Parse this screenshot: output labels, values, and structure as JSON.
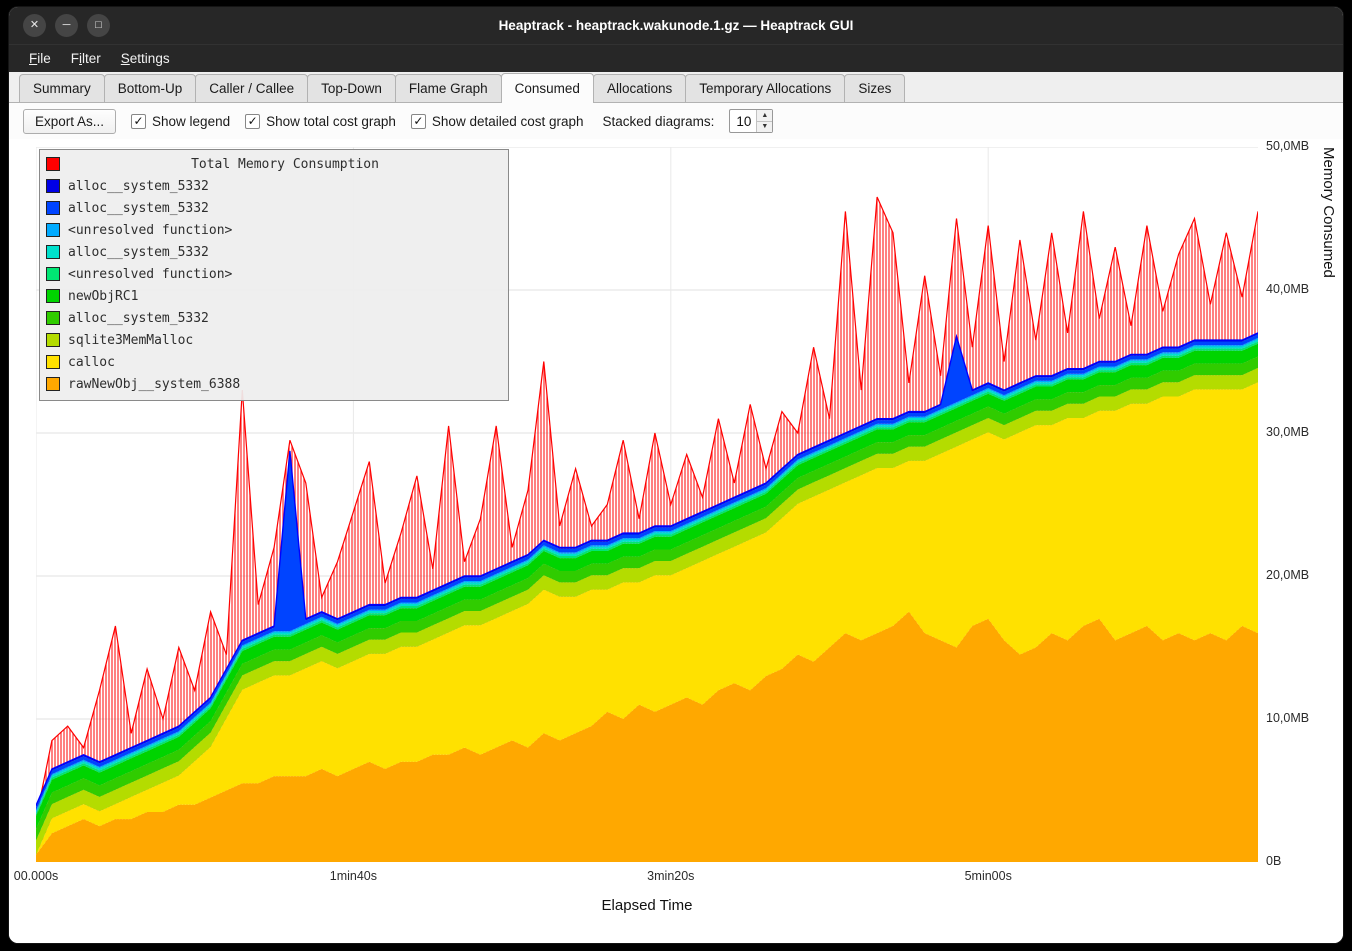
{
  "window": {
    "title": "Heaptrack - heaptrack.wakunode.1.gz — Heaptrack GUI",
    "controls": [
      {
        "name": "close",
        "glyph": "✕"
      },
      {
        "name": "minimize",
        "glyph": "─"
      },
      {
        "name": "maximize",
        "glyph": "□"
      }
    ]
  },
  "menubar": {
    "items": [
      {
        "label": "File",
        "accel": 0
      },
      {
        "label": "Filter",
        "accel": 1
      },
      {
        "label": "Settings",
        "accel": 0
      }
    ]
  },
  "tabs": {
    "active": "Consumed",
    "items": [
      "Summary",
      "Bottom-Up",
      "Caller / Callee",
      "Top-Down",
      "Flame Graph",
      "Consumed",
      "Allocations",
      "Temporary Allocations",
      "Sizes"
    ]
  },
  "toolbar": {
    "export_label": "Export As...",
    "check_glyph": "✓",
    "checkboxes": [
      {
        "label": "Show legend",
        "checked": true
      },
      {
        "label": "Show total cost graph",
        "checked": true
      },
      {
        "label": "Show detailed cost graph",
        "checked": true
      }
    ],
    "stacked_label": "Stacked diagrams:",
    "stacked_value": "10",
    "spin_up_glyph": "▲",
    "spin_down_glyph": "▼"
  },
  "chart_data": {
    "type": "area",
    "xlabel": "Elapsed Time",
    "ylabel": "Memory Consumed",
    "xlim": [
      0,
      385
    ],
    "ylim": [
      0,
      50
    ],
    "x_unit": "seconds",
    "y_unit": "MB",
    "grid": true,
    "x_ticks": [
      {
        "t": 0,
        "label": "00.000s"
      },
      {
        "t": 100,
        "label": "1min40s"
      },
      {
        "t": 200,
        "label": "3min20s"
      },
      {
        "t": 300,
        "label": "5min00s"
      }
    ],
    "y_ticks": [
      {
        "v": 0,
        "label": "0B"
      },
      {
        "v": 10,
        "label": "10,0MB"
      },
      {
        "v": 20,
        "label": "20,0MB"
      },
      {
        "v": 30,
        "label": "30,0MB"
      },
      {
        "v": 40,
        "label": "40,0MB"
      },
      {
        "v": 50,
        "label": "50,0MB"
      }
    ],
    "x_step": 5,
    "total": {
      "name": "Total Memory Consumption",
      "color": "#ff0000",
      "values": [
        3,
        8.5,
        9.5,
        8,
        12,
        16.5,
        9,
        13.5,
        10,
        15,
        12,
        17.5,
        14.5,
        33,
        18,
        22,
        29.5,
        26.5,
        18.5,
        21,
        24.5,
        28,
        19.5,
        23,
        27,
        20.5,
        30.5,
        21,
        24,
        30.5,
        22,
        26,
        35,
        23.5,
        27.5,
        23.5,
        25,
        29.5,
        24,
        30,
        25,
        28.5,
        25.5,
        31,
        26.5,
        32,
        27.5,
        31.5,
        30,
        36,
        31,
        45.5,
        33,
        46.5,
        44,
        33.5,
        41,
        34,
        45,
        36,
        44.5,
        35,
        43.5,
        36.5,
        44,
        37,
        45.5,
        38,
        43,
        37.5,
        44.5,
        38.5,
        42.5,
        45,
        39,
        44,
        39.5,
        45.5
      ]
    },
    "series_bottom_up": [
      {
        "name": "rawNewObj__system_6388",
        "color": "#ffa800",
        "values": [
          0.5,
          2,
          2.5,
          3,
          2.5,
          3,
          3,
          3.5,
          3.5,
          4,
          4,
          4.5,
          5,
          5.5,
          5.5,
          6,
          6,
          6,
          6.5,
          6,
          6.5,
          7,
          6.5,
          7,
          7,
          7.5,
          7.5,
          8,
          7.5,
          8,
          8.5,
          8,
          9,
          8.5,
          9,
          9.5,
          10.5,
          10,
          11,
          10.5,
          11,
          11.5,
          11,
          12,
          12.5,
          12,
          13,
          13.5,
          14.5,
          14,
          15,
          16,
          15.5,
          16,
          16.5,
          17.5,
          16,
          15.5,
          15,
          16.5,
          17,
          15.5,
          14.5,
          15,
          16,
          15.5,
          16.5,
          17,
          15.5,
          16,
          16.5,
          15.5,
          16,
          15.5,
          16,
          15.5,
          16.5,
          16
        ]
      },
      {
        "name": "calloc",
        "color": "#ffe100",
        "values": [
          0,
          1.05,
          1.05,
          1.05,
          1.05,
          1.05,
          1.55,
          1.55,
          2.05,
          2.05,
          3.05,
          3.55,
          5.05,
          6.55,
          7.05,
          7.05,
          7.05,
          7.55,
          7.55,
          7.55,
          7.55,
          7.55,
          8.05,
          8.05,
          8.05,
          8.05,
          8.55,
          8.55,
          9.05,
          9.05,
          9.05,
          10.05,
          10.05,
          10.05,
          9.55,
          9.55,
          8.55,
          9.55,
          8.55,
          9.55,
          9.05,
          9.05,
          10.05,
          9.55,
          9.55,
          10.55,
          10.05,
          10.55,
          10.55,
          11.55,
          11.05,
          10.55,
          11.55,
          11.55,
          11.05,
          10.55,
          12.05,
          13.05,
          14.05,
          13.05,
          13.05,
          14.05,
          15.55,
          15.55,
          14.55,
          15.55,
          14.55,
          14.55,
          16.05,
          16.05,
          15.55,
          17.05,
          16.55,
          17.55,
          17.05,
          17.55,
          16.55,
          17.55
        ]
      },
      {
        "name": "sqlite3MemMalloc",
        "color": "#b4dc00",
        "constant": 1.0
      },
      {
        "name": "alloc__system_5332",
        "color": "#30cc00",
        "constant": 0.8
      },
      {
        "name": "newObjRC1",
        "color": "#00d400",
        "constant": 0.9
      },
      {
        "name": "<unresolved function>",
        "color": "#00e673",
        "constant": 0.15
      },
      {
        "name": "alloc__system_5332",
        "color": "#00e0cc",
        "constant": 0.15
      },
      {
        "name": "<unresolved function>",
        "color": "#00aaff",
        "constant": 0.1
      },
      {
        "name": "alloc__system_5332",
        "color": "#0044ff",
        "constant": 0.25,
        "overrides": {
          "80": 12.5,
          "290": 4.5
        }
      },
      {
        "name": "alloc__system_5332",
        "color": "#0000e6",
        "constant": 0.1
      }
    ],
    "legend": {
      "items": [
        {
          "label": "Total Memory Consumption",
          "color": "#ff0000"
        },
        {
          "label": "alloc__system_5332",
          "color": "#0000e6"
        },
        {
          "label": "alloc__system_5332",
          "color": "#0044ff"
        },
        {
          "label": "<unresolved function>",
          "color": "#00aaff"
        },
        {
          "label": "alloc__system_5332",
          "color": "#00e0cc"
        },
        {
          "label": "<unresolved function>",
          "color": "#00e673"
        },
        {
          "label": "newObjRC1",
          "color": "#00d400"
        },
        {
          "label": "alloc__system_5332",
          "color": "#30cc00"
        },
        {
          "label": "sqlite3MemMalloc",
          "color": "#b4dc00"
        },
        {
          "label": "calloc",
          "color": "#ffe100"
        },
        {
          "label": "rawNewObj__system_6388",
          "color": "#ffa800"
        }
      ]
    }
  }
}
